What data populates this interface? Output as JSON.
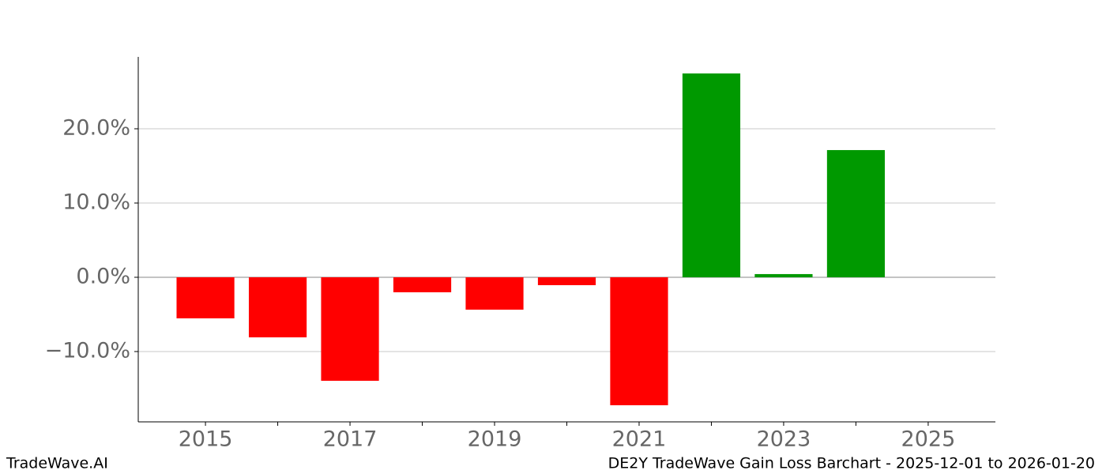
{
  "chart_data": {
    "type": "bar",
    "title": "DE2Y TradeWave Gain Loss Barchart - 2025-12-01 to 2026-01-20",
    "watermark": "TradeWave.AI",
    "x": [
      2015,
      2016,
      2017,
      2018,
      2019,
      2020,
      2021,
      2022,
      2023,
      2024
    ],
    "values": [
      -5.53,
      -8.09,
      -13.94,
      -2.02,
      -4.36,
      -1.06,
      -17.23,
      27.45,
      0.43,
      17.13
    ],
    "colors": [
      "#ff0000",
      "#ff0000",
      "#ff0000",
      "#ff0000",
      "#ff0000",
      "#ff0000",
      "#ff0000",
      "#009900",
      "#009900",
      "#009900"
    ],
    "xlim": [
      2014.07,
      2025.93
    ],
    "xticks": [
      2015,
      2017,
      2019,
      2021,
      2023,
      2025
    ],
    "xminorticks": [
      2016,
      2018,
      2020,
      2022,
      2024
    ],
    "ylim": [
      -19.47,
      29.68
    ],
    "yticks": [
      {
        "value": -10,
        "label": "−10.0%"
      },
      {
        "value": 0,
        "label": "0.0%"
      },
      {
        "value": 10,
        "label": "10.0%"
      },
      {
        "value": 20,
        "label": "20.0%"
      }
    ],
    "grid": true
  }
}
